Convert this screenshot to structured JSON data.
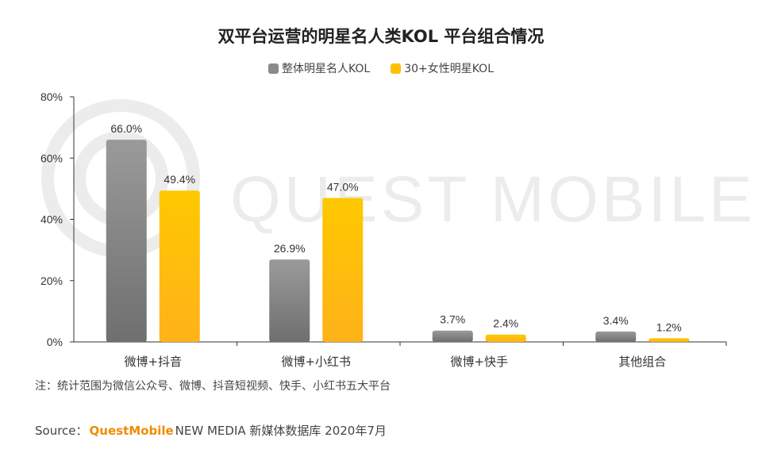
{
  "title": "双平台运营的明星名人类KOL 平台组合情况",
  "watermark": {
    "text": "QUEST MOBILE"
  },
  "note": "注：统计范围为微信公众号、微博、抖音短视频、快手、小红书五大平台",
  "source": {
    "label": "Source：",
    "brand": "QuestMobile",
    "rest": "NEW MEDIA 新媒体数据库 2020年7月"
  },
  "colors": {
    "gray": "#8a8a8a",
    "yellow": "#ffc000",
    "axis": "#333333"
  },
  "chart_data": {
    "type": "bar",
    "categories": [
      "微博+抖音",
      "微博+小红书",
      "微博+快手",
      "其他组合"
    ],
    "series": [
      {
        "name": "整体明星名人KOL",
        "values": [
          66.0,
          26.9,
          3.7,
          3.4
        ],
        "labels": [
          "66.0%",
          "26.9%",
          "3.7%",
          "3.4%"
        ],
        "color": "#8a8a8a"
      },
      {
        "name": "30+女性明星KOL",
        "values": [
          49.4,
          47.0,
          2.4,
          1.2
        ],
        "labels": [
          "49.4%",
          "47.0%",
          "2.4%",
          "1.2%"
        ],
        "color": "#ffc000"
      }
    ],
    "ylim": [
      0,
      80
    ],
    "yticks": [
      "0%",
      "20%",
      "40%",
      "60%",
      "80%"
    ],
    "legend": "top-center",
    "grid": false
  }
}
